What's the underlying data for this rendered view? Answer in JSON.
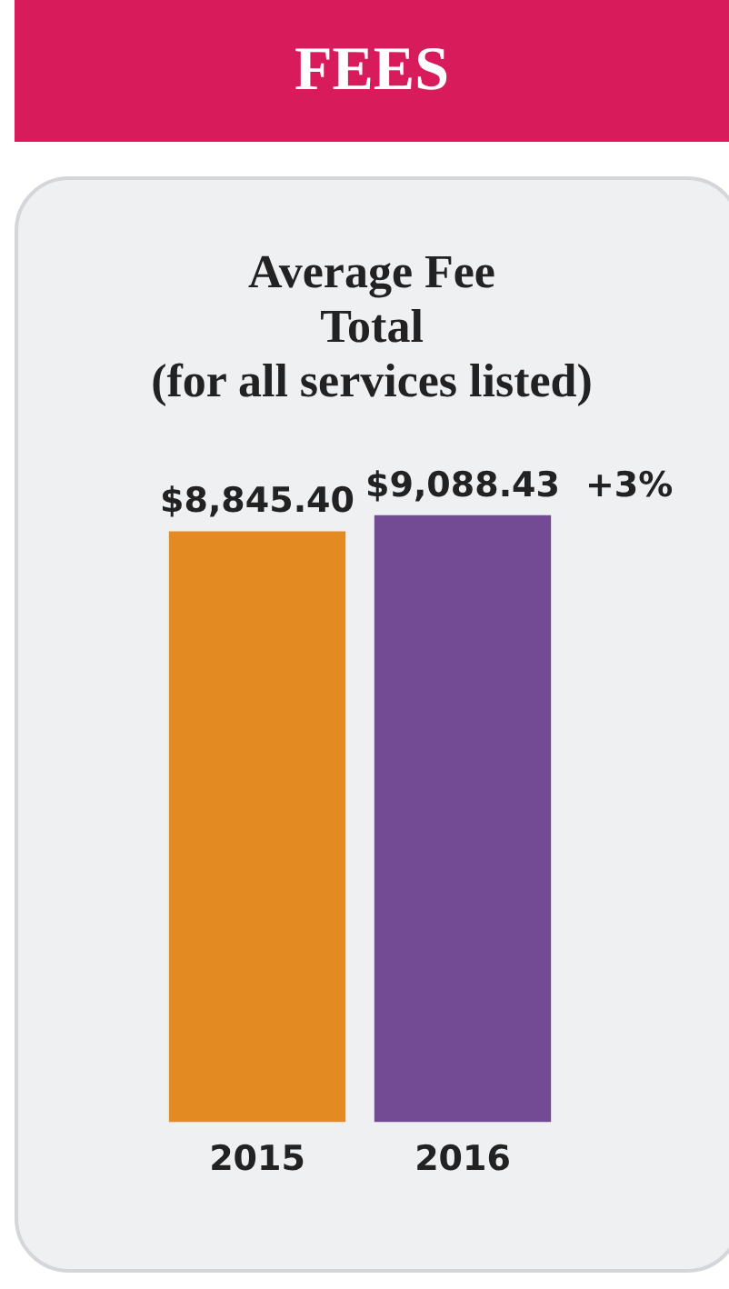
{
  "chart_data": {
    "type": "bar",
    "title": "FEES",
    "subtitle": "Average Fee\nTotal\n(for all services listed)",
    "categories": [
      "2015",
      "2016"
    ],
    "values": [
      8845.4,
      9088.43
    ],
    "colors": [
      "#e38b22",
      "#734b94"
    ],
    "value_labels": [
      "$8,845.40",
      "$9,088.43"
    ],
    "annotations": [
      "+3%"
    ],
    "grid": false,
    "legend": false
  }
}
